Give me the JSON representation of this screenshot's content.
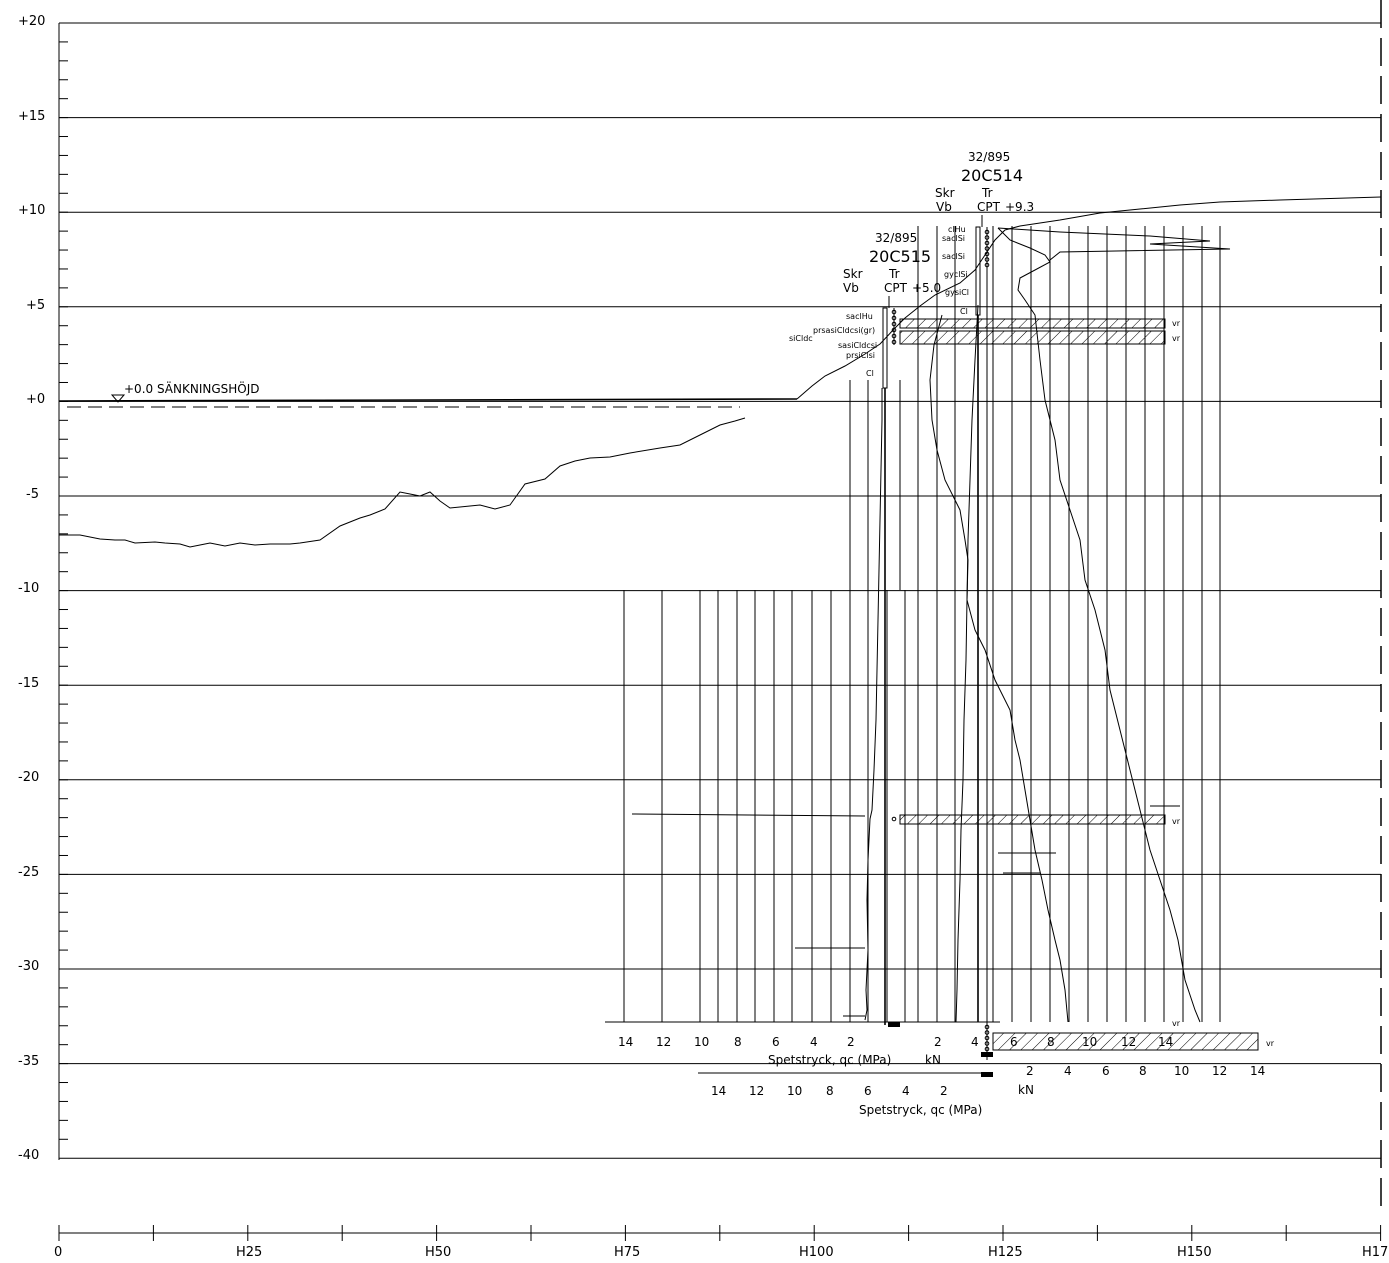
{
  "elevation_labels": [
    "+20",
    "+15",
    "+10",
    "+5",
    "+0",
    "-5",
    "-10",
    "-15",
    "-20",
    "-25",
    "-30",
    "-35",
    "-40"
  ],
  "chainage_labels": [
    "0",
    "H25",
    "H50",
    "H75",
    "H100",
    "H125",
    "H150",
    "H17"
  ],
  "water_level_label": "+0.0  SÄNKNINGSHÖJD",
  "borehole_20C515": {
    "number": "32/895",
    "id": "20C515",
    "method_left": "Skr",
    "method_left2": "Vb",
    "method_right": "Tr",
    "method_right2": "CPT",
    "ground_level": "+5.0",
    "soil_labels": [
      "saclHu",
      "prsasiCldcsi(gr)",
      "siCldc",
      "sasiCldcsi",
      "prsiClsi",
      "Cl"
    ],
    "qc_scale": [
      "14",
      "12",
      "10",
      "8",
      "6",
      "4",
      "2"
    ],
    "qc_label": "Spetstryck, qc (MPa)",
    "kn_label": "kN"
  },
  "borehole_20C514": {
    "number": "32/895",
    "id": "20C514",
    "method_left": "Skr",
    "method_left2": "Vb",
    "method_right": "Tr",
    "method_right2": "CPT",
    "ground_level": "+9.3",
    "soil_labels": [
      "clHu",
      "saclSi",
      "saclSi",
      "gyclSi",
      "gysiCl",
      "Cl"
    ],
    "qc_scale": [
      "14",
      "12",
      "10",
      "8",
      "6",
      "4",
      "2"
    ],
    "qc_label": "Spetstryck, qc (MPa)",
    "kn_scale": [
      "2",
      "4",
      "6",
      "8",
      "10",
      "12",
      "14"
    ],
    "kn_label": "kN",
    "upper_scale": [
      "6",
      "8",
      "10",
      "12",
      "14"
    ],
    "upper_scale_left": [
      "2",
      "4"
    ]
  },
  "layer_marks": [
    "vr",
    "vr",
    "vr",
    "vr",
    "vr"
  ]
}
